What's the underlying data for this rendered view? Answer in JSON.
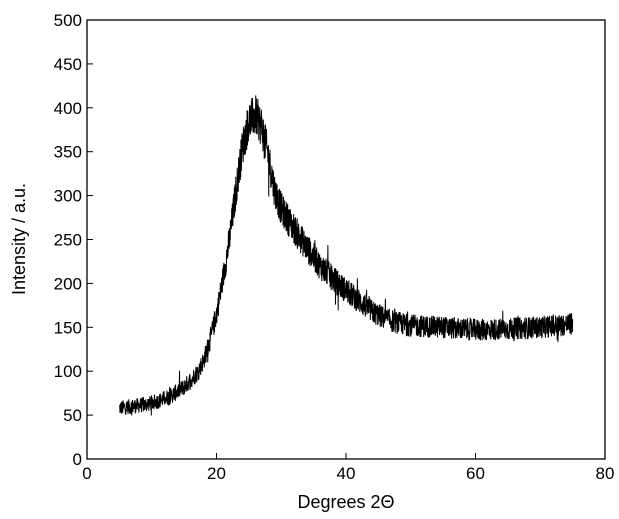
{
  "chart_data": {
    "type": "line",
    "xlabel": "Degrees 2Θ",
    "ylabel": "Intensity / a.u.",
    "xlim": [
      0,
      80
    ],
    "ylim": [
      0,
      500
    ],
    "x_ticks": [
      0,
      20,
      40,
      60,
      80
    ],
    "y_ticks": [
      0,
      50,
      100,
      150,
      200,
      250,
      300,
      350,
      400,
      450,
      500
    ],
    "grid": false,
    "legend": "none",
    "line_color": "#000000",
    "series": [
      {
        "x": [
          5,
          7,
          9,
          11,
          13,
          15,
          17,
          18,
          19,
          20,
          21,
          22,
          23,
          24,
          25,
          26,
          27,
          28,
          29,
          30,
          32,
          34,
          36,
          38,
          40,
          42,
          44,
          46,
          48,
          50,
          55,
          60,
          65,
          70,
          75
        ],
        "y": [
          58,
          60,
          62,
          66,
          72,
          82,
          98,
          112,
          135,
          165,
          205,
          250,
          305,
          355,
          385,
          392,
          378,
          345,
          305,
          285,
          262,
          240,
          220,
          205,
          192,
          180,
          168,
          160,
          155,
          152,
          150,
          147,
          148,
          150,
          154
        ]
      }
    ]
  }
}
